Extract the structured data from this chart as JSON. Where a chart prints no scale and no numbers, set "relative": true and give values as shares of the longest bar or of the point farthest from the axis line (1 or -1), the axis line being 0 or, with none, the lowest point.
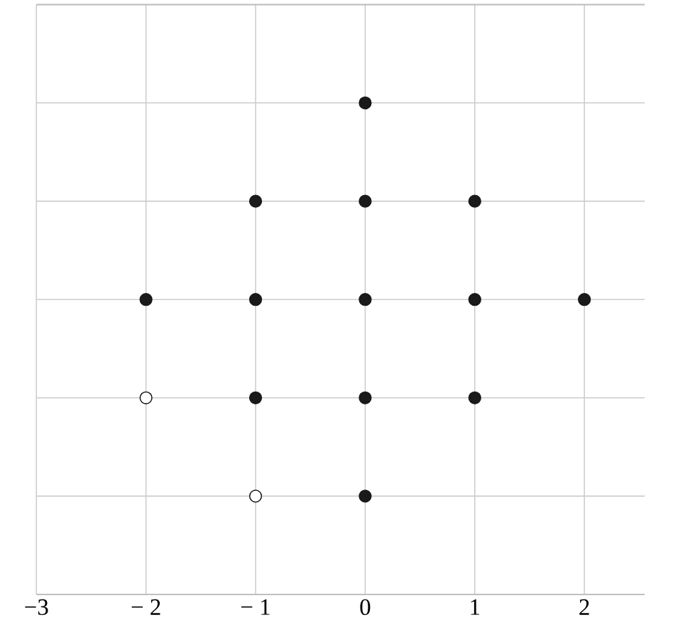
{
  "chart_data": {
    "type": "scatter",
    "relative": true,
    "xlim": [
      -3,
      2.55
    ],
    "xticks": [
      {
        "value": -3,
        "label": "−3"
      },
      {
        "value": -2,
        "label": "− 2"
      },
      {
        "value": -1,
        "label": "− 1"
      },
      0,
      1,
      2
    ],
    "tick_labels": "x",
    "grid": true,
    "marker": "circle",
    "series": [
      {
        "color": "#1a1a1a",
        "x": [
          0,
          -1,
          0,
          1,
          -2,
          -1,
          0,
          1,
          2,
          -1,
          0,
          1,
          0
        ],
        "values": [
          1,
          0.75,
          0.75,
          0.75,
          0.5,
          0.5,
          0.5,
          0.5,
          0.5,
          0.25,
          0.25,
          0.25,
          0
        ]
      },
      {
        "color": "#ffffff",
        "x": [
          -2,
          -1
        ],
        "values": [
          0.25,
          0
        ]
      }
    ]
  }
}
